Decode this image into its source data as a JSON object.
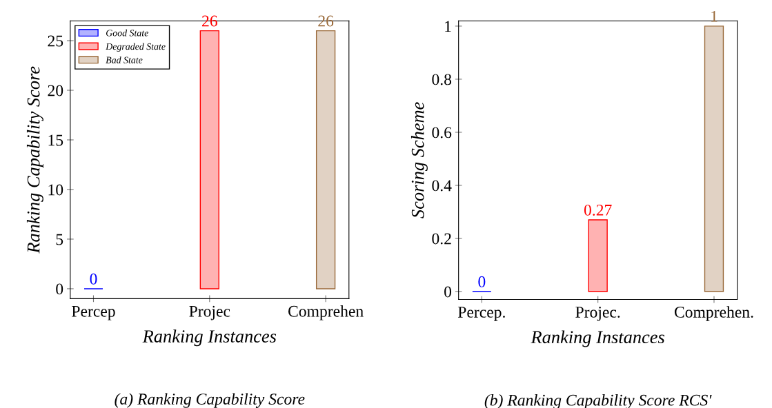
{
  "chart_data": [
    {
      "type": "bar",
      "categories": [
        "Percep",
        "Projec",
        "Comprehen"
      ],
      "xlabel": "Ranking Instances",
      "ylabel": "Ranking Capability Score",
      "ylim": [
        -1,
        27
      ],
      "yticks": [
        0,
        5,
        10,
        15,
        20,
        25
      ],
      "data_labels": true,
      "legend": "top left",
      "grid": false,
      "series": [
        {
          "name": "Good State",
          "color": "#0000ff",
          "values": [
            0,
            null,
            null
          ]
        },
        {
          "name": "Degraded State",
          "color": "#ff0000",
          "values": [
            null,
            26,
            null
          ]
        },
        {
          "name": "Bad State",
          "color": "#9a6a3a",
          "values": [
            null,
            null,
            26
          ]
        }
      ],
      "annotations": [
        "(a) Ranking Capability Score"
      ]
    },
    {
      "type": "bar",
      "categories": [
        "Percep.",
        "Projec.",
        "Comprehen."
      ],
      "xlabel": "Ranking Instances",
      "ylabel": "Scoring Scheme",
      "ylim": [
        -0.03,
        1.02
      ],
      "yticks": [
        0,
        0.2,
        0.4,
        0.6,
        0.8,
        1
      ],
      "data_labels": true,
      "grid": false,
      "series": [
        {
          "color": "#0000ff",
          "values": [
            0,
            null,
            null
          ]
        },
        {
          "color": "#ff0000",
          "values": [
            null,
            0.27,
            null
          ]
        },
        {
          "color": "#9a6a3a",
          "values": [
            null,
            null,
            1
          ]
        }
      ],
      "annotations": [
        "(b) Ranking Capability Score RCS′"
      ]
    }
  ]
}
